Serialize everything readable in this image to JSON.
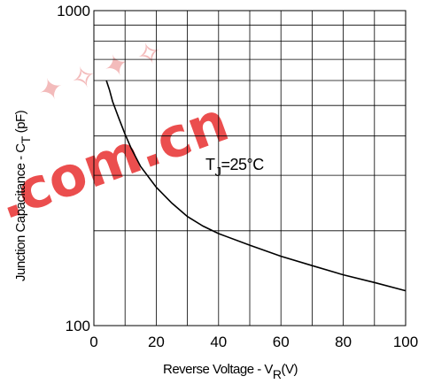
{
  "chart_data": {
    "type": "line",
    "xlabel": "Reverse Voltage - V",
    "xlabel_sub": "R",
    "xlabel_unit": "(V)",
    "ylabel": "Junction Capacitance - C",
    "ylabel_sub": "T",
    "ylabel_unit": "(pF)",
    "x_ticks": [
      "0",
      "20",
      "40",
      "60",
      "80",
      "100"
    ],
    "y_ticks": [
      "100",
      "1000"
    ],
    "xlim": [
      0,
      100
    ],
    "ylim": [
      100,
      1000
    ],
    "y_scale": "log",
    "grid": true,
    "annotation": {
      "text": "T",
      "sub": "J",
      "rest": "=25°C"
    },
    "series": [
      {
        "x": [
          4,
          5,
          6,
          8,
          10,
          12,
          15,
          20,
          25,
          30,
          35,
          40,
          50,
          60,
          70,
          80,
          90,
          100
        ],
        "y": [
          600,
          560,
          515,
          455,
          405,
          365,
          320,
          275,
          245,
          222,
          207,
          196,
          180,
          166,
          155,
          145,
          137,
          129
        ]
      }
    ]
  },
  "watermark": {
    "text": ".com.cn",
    "color": "#ee2222"
  }
}
